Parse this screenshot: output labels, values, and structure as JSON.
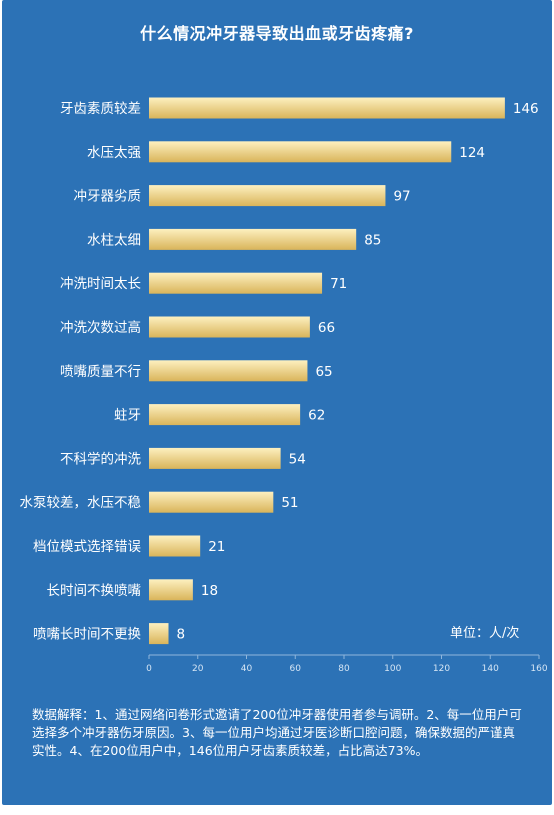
{
  "chart_data": {
    "type": "bar",
    "orientation": "horizontal",
    "title": "什么情况冲牙器导致出血或牙齿疼痛?",
    "categories": [
      "牙齿素质较差",
      "水压太强",
      "冲牙器劣质",
      "水柱太细",
      "冲洗时间太长",
      "冲洗次数过高",
      "喷嘴质量不行",
      "蛀牙",
      "不科学的冲洗",
      "水泵较差，水压不稳",
      "档位模式选择错误",
      "长时间不换喷嘴",
      "喷嘴长时间不更换"
    ],
    "values": [
      146,
      124,
      97,
      85,
      71,
      66,
      65,
      62,
      54,
      51,
      21,
      18,
      8
    ],
    "xlim": [
      0,
      160
    ],
    "xticks": [
      0,
      20,
      40,
      60,
      80,
      100,
      120,
      140,
      160
    ],
    "grid": false,
    "unit": "单位：人/次",
    "colors": {
      "background": "#2c72b6",
      "bar_light": "#fdf0c0",
      "bar_dark": "#d9b45a",
      "text": "#ffffff"
    }
  },
  "footnote": "数据解释：1、通过网络问卷形式邀请了200位冲牙器使用者参与调研。2、每一位用户可选择多个冲牙器伤牙原因。3、每一位用户均通过牙医诊断口腔问题，确保数据的严谨真实性。4、在200位用户中，146位用户牙齿素质较差，占比高达73%。"
}
